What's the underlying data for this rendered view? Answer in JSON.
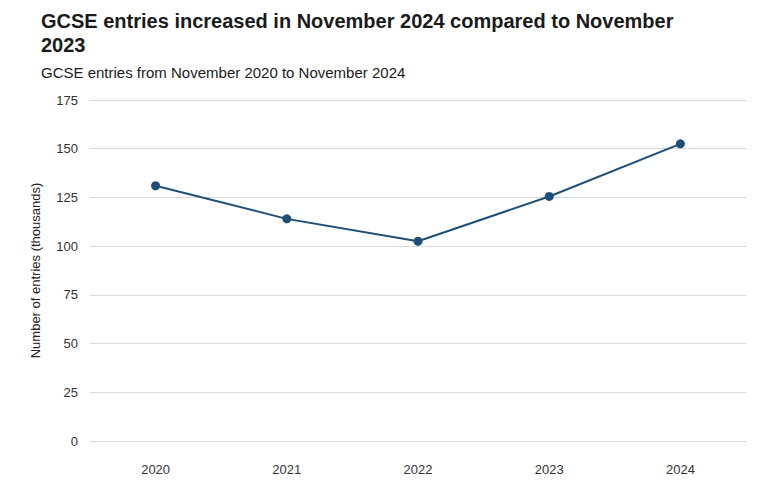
{
  "chart_data": {
    "type": "line",
    "title": "GCSE entries increased in November 2024 compared to November 2023",
    "subtitle": "GCSE entries from November 2020 to November 2024",
    "y_label": "Number of entries (thousands)",
    "categories": [
      "2020",
      "2021",
      "2022",
      "2023",
      "2024"
    ],
    "values": [
      131,
      114,
      102.5,
      125.5,
      152.5
    ],
    "color": "#1d4e78",
    "marker": "circle",
    "ylim": [
      0,
      175
    ],
    "yticks": [
      0,
      25,
      50,
      75,
      100,
      125,
      150,
      175
    ],
    "grid": true
  }
}
